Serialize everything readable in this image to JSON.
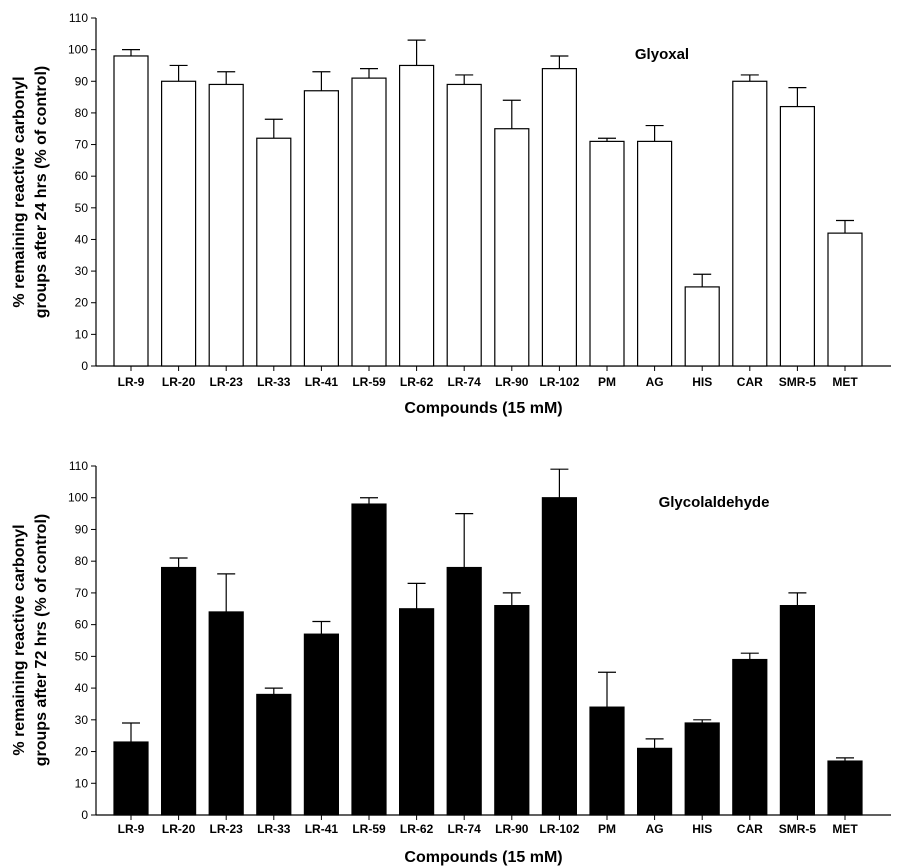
{
  "chart_data": [
    {
      "type": "bar",
      "annotation": "Glyoxal",
      "ylabel_line1": "% remaining reactive carbonyl",
      "ylabel_line2": "groups after 24 hrs (% of control)",
      "xlabel": "Compounds (15 mM)",
      "ylim": [
        0,
        110
      ],
      "yticks": [
        0,
        10,
        20,
        30,
        40,
        50,
        60,
        70,
        80,
        90,
        100,
        110
      ],
      "bar_fill": "#ffffff",
      "categories": [
        "LR-9",
        "LR-20",
        "LR-23",
        "LR-33",
        "LR-41",
        "LR-59",
        "LR-62",
        "LR-74",
        "LR-90",
        "LR-102",
        "PM",
        "AG",
        "HIS",
        "CAR",
        "SMR-5",
        "MET"
      ],
      "values": [
        98,
        90,
        89,
        72,
        87,
        91,
        95,
        89,
        75,
        94,
        71,
        71,
        25,
        90,
        82,
        42
      ],
      "error": [
        2,
        5,
        4,
        6,
        6,
        3,
        8,
        3,
        9,
        4,
        1,
        5,
        4,
        2,
        6,
        4
      ]
    },
    {
      "type": "bar",
      "annotation": "Glycolaldehyde",
      "ylabel_line1": "% remaining reactive carbonyl",
      "ylabel_line2": "groups after 72 hrs (% of control)",
      "xlabel": "Compounds (15 mM)",
      "ylim": [
        0,
        110
      ],
      "yticks": [
        0,
        10,
        20,
        30,
        40,
        50,
        60,
        70,
        80,
        90,
        100,
        110
      ],
      "bar_fill": "#000000",
      "categories": [
        "LR-9",
        "LR-20",
        "LR-23",
        "LR-33",
        "LR-41",
        "LR-59",
        "LR-62",
        "LR-74",
        "LR-90",
        "LR-102",
        "PM",
        "AG",
        "HIS",
        "CAR",
        "SMR-5",
        "MET"
      ],
      "values": [
        23,
        78,
        64,
        38,
        57,
        98,
        65,
        78,
        66,
        100,
        34,
        21,
        29,
        49,
        66,
        17
      ],
      "error": [
        6,
        3,
        12,
        2,
        4,
        2,
        8,
        17,
        4,
        9,
        11,
        3,
        1,
        2,
        4,
        1
      ]
    }
  ]
}
